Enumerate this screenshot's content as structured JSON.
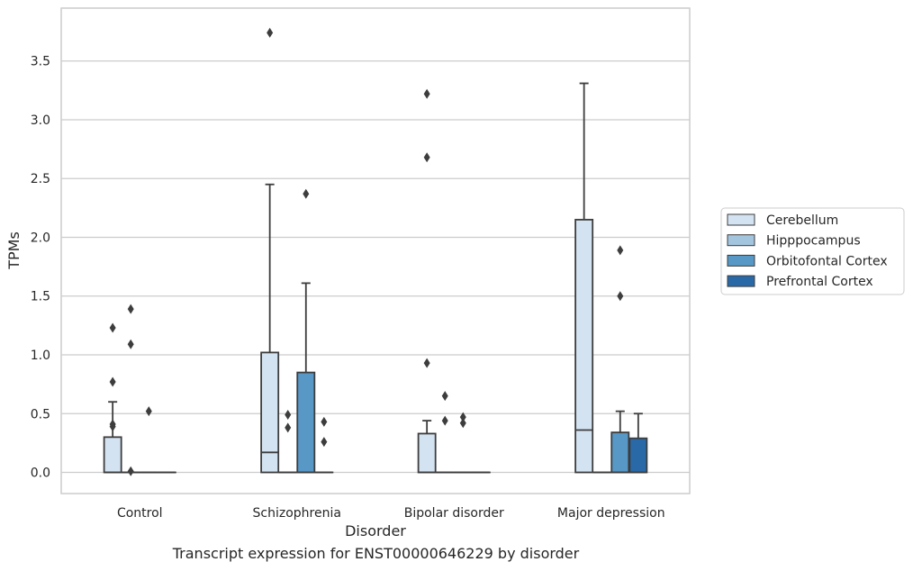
{
  "chart_data": {
    "type": "box",
    "caption": "Transcript expression for ENST00000646229 by disorder",
    "xlabel": "Disorder",
    "ylabel": "TPMs",
    "ylim": [
      -0.18,
      3.95
    ],
    "yticks": [
      0.0,
      0.5,
      1.0,
      1.5,
      2.0,
      2.5,
      3.0,
      3.5
    ],
    "ytick_labels": [
      "0.0",
      "0.5",
      "1.0",
      "1.5",
      "2.0",
      "2.5",
      "3.0",
      "3.5"
    ],
    "grid": "y",
    "legend_placement": "right",
    "categories": [
      "Control",
      "Schizophrenia",
      "Bipolar disorder",
      "Major depression"
    ],
    "series": [
      {
        "name": "Cerebellum",
        "color": "#d4e3f2",
        "boxes": [
          {
            "q1": 0.0,
            "median": 0.0,
            "q3": 0.3,
            "whisker_low": 0.0,
            "whisker_high": 0.6,
            "outliers": [
              1.23,
              0.77,
              0.41,
              0.39
            ]
          },
          {
            "q1": 0.0,
            "median": 0.17,
            "q3": 1.02,
            "whisker_low": 0.0,
            "whisker_high": 2.45,
            "outliers": [
              3.74
            ]
          },
          {
            "q1": 0.0,
            "median": 0.0,
            "q3": 0.33,
            "whisker_low": 0.0,
            "whisker_high": 0.44,
            "outliers": [
              3.22,
              2.68,
              0.93
            ]
          },
          {
            "q1": 0.0,
            "median": 0.36,
            "q3": 2.15,
            "whisker_low": 0.0,
            "whisker_high": 3.31,
            "outliers": []
          }
        ]
      },
      {
        "name": "Hipppocampus",
        "color": "#a3c5de",
        "boxes": [
          {
            "q1": 0.0,
            "median": 0.0,
            "q3": 0.0,
            "whisker_low": 0.0,
            "whisker_high": 0.0,
            "outliers": [
              1.39,
              1.09,
              0.01
            ]
          },
          {
            "q1": 0.0,
            "median": 0.0,
            "q3": 0.0,
            "whisker_low": 0.0,
            "whisker_high": 0.0,
            "outliers": [
              0.49,
              0.38
            ]
          },
          {
            "q1": 0.0,
            "median": 0.0,
            "q3": 0.0,
            "whisker_low": 0.0,
            "whisker_high": 0.0,
            "outliers": [
              0.65,
              0.44
            ]
          },
          {
            "q1": 0.0,
            "median": 0.0,
            "q3": 0.0,
            "whisker_low": 0.0,
            "whisker_high": 0.0,
            "outliers": []
          }
        ]
      },
      {
        "name": "Orbitofontal Cortex",
        "color": "#5798c6",
        "boxes": [
          {
            "q1": 0.0,
            "median": 0.0,
            "q3": 0.0,
            "whisker_low": 0.0,
            "whisker_high": 0.0,
            "outliers": [
              0.52
            ]
          },
          {
            "q1": 0.0,
            "median": 0.0,
            "q3": 0.85,
            "whisker_low": 0.0,
            "whisker_high": 1.61,
            "outliers": [
              2.37
            ]
          },
          {
            "q1": 0.0,
            "median": 0.0,
            "q3": 0.0,
            "whisker_low": 0.0,
            "whisker_high": 0.0,
            "outliers": [
              0.47,
              0.42
            ]
          },
          {
            "q1": 0.0,
            "median": 0.0,
            "q3": 0.34,
            "whisker_low": 0.0,
            "whisker_high": 0.52,
            "outliers": [
              1.89,
              1.5
            ]
          }
        ]
      },
      {
        "name": "Prefrontal Cortex",
        "color": "#2a69a8",
        "boxes": [
          {
            "q1": 0.0,
            "median": 0.0,
            "q3": 0.0,
            "whisker_low": 0.0,
            "whisker_high": 0.0,
            "outliers": []
          },
          {
            "q1": 0.0,
            "median": 0.0,
            "q3": 0.0,
            "whisker_low": 0.0,
            "whisker_high": 0.0,
            "outliers": [
              0.43,
              0.26
            ]
          },
          {
            "q1": 0.0,
            "median": 0.0,
            "q3": 0.0,
            "whisker_low": 0.0,
            "whisker_high": 0.0,
            "outliers": []
          },
          {
            "q1": 0.0,
            "median": 0.0,
            "q3": 0.29,
            "whisker_low": 0.0,
            "whisker_high": 0.5,
            "outliers": []
          }
        ]
      }
    ]
  }
}
